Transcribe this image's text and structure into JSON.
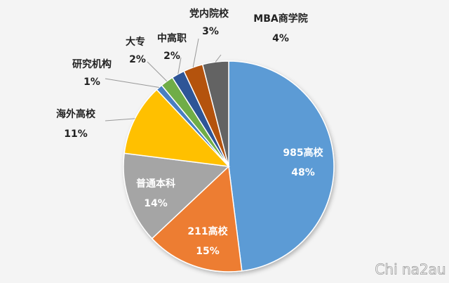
{
  "chart_data": {
    "type": "pie",
    "categories": [
      "985高校",
      "211高校",
      "普通本科",
      "海外高校",
      "研究机构",
      "大专",
      "中高职",
      "党内院校",
      "MBA商学院"
    ],
    "values": [
      48,
      15,
      14,
      11,
      1,
      2,
      2,
      3,
      4
    ],
    "value_labels": [
      "48%",
      "15%",
      "14%",
      "11%",
      "1%",
      "2%",
      "2%",
      "3%",
      "4%"
    ],
    "colors": [
      "#5b9bd5",
      "#ed7d31",
      "#a5a5a5",
      "#ffc000",
      "#4a7fc1",
      "#70ad47",
      "#2f5597",
      "#b4520f",
      "#636363"
    ],
    "watermark": "Chi na2au"
  }
}
